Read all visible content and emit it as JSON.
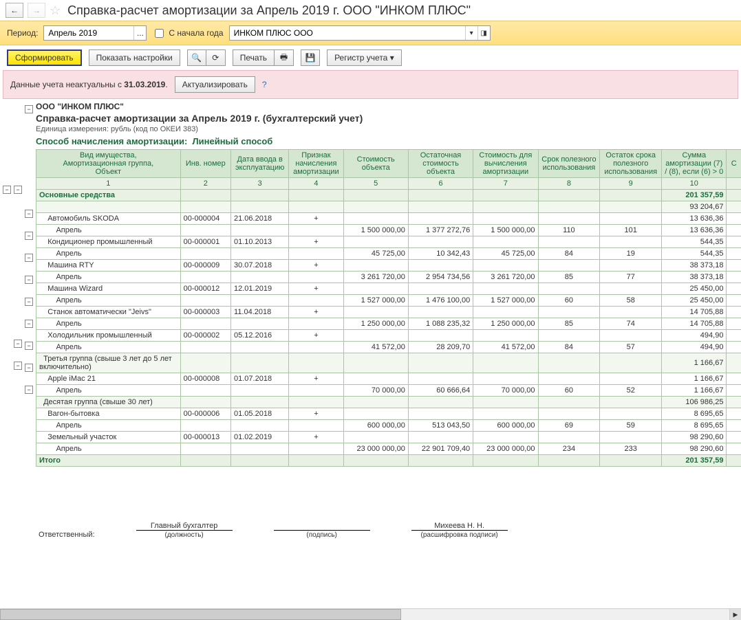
{
  "title": "Справка-расчет амортизации за Апрель 2019 г. ООО \"ИНКОМ ПЛЮС\"",
  "period_label": "Период:",
  "period_value": "Апрель 2019",
  "from_year_start_label": "С начала года",
  "org_value": "ИНКОМ ПЛЮС ООО",
  "toolbar": {
    "form": "Сформировать",
    "show_settings": "Показать настройки",
    "print": "Печать",
    "register": "Регистр учета"
  },
  "warning": {
    "text_pre": "Данные учета неактуальны с ",
    "date": "31.03.2019",
    "dot": ".",
    "update_btn": "Актуализировать",
    "q": "?"
  },
  "report": {
    "org_header": "ООО \"ИНКОМ ПЛЮС\"",
    "title": "Справка-расчет амортизации за Апрель 2019 г. (бухгалтерский учет)",
    "unit": "Единица измерения:   рубль (код по ОКЕИ 383)",
    "method_label": "Способ начисления амортизации:",
    "method_value": "Линейный способ",
    "columns": [
      "Вид имущества,\nАмортизационная группа,\nОбъект",
      "Инв. номер",
      "Дата ввода в эксплуатацию",
      "Признак начисления амортизации",
      "Стоимость объекта",
      "Остаточная стоимость объекта",
      "Стоимость для вычисления амортизации",
      "Срок полезного использования",
      "Остаток срока полезного использования",
      "Сумма амортизации (7) / (8), если (6) > 0",
      "С"
    ],
    "col_nums": [
      "1",
      "2",
      "3",
      "4",
      "5",
      "6",
      "7",
      "8",
      "9",
      "10"
    ],
    "group_main": {
      "name": "Основные средства",
      "sum10": "201 357,59"
    },
    "blank_sum": "93 204,67",
    "items1": [
      {
        "name": "Автомобиль SKODA",
        "inv": "00-000004",
        "date": "21.06.2018",
        "sign": "+",
        "sum10": "13 636,36",
        "month": "Апрель",
        "c5": "1 500 000,00",
        "c6": "1 377 272,76",
        "c7": "1 500 000,00",
        "c8": "110",
        "c9": "101",
        "m10": "13 636,36"
      },
      {
        "name": "Кондиционер промышленный",
        "inv": "00-000001",
        "date": "01.10.2013",
        "sign": "+",
        "sum10": "544,35",
        "month": "Апрель",
        "c5": "45 725,00",
        "c6": "10 342,43",
        "c7": "45 725,00",
        "c8": "84",
        "c9": "19",
        "m10": "544,35"
      },
      {
        "name": "Машина RTY",
        "inv": "00-000009",
        "date": "30.07.2018",
        "sign": "+",
        "sum10": "38 373,18",
        "month": "Апрель",
        "c5": "3 261 720,00",
        "c6": "2 954 734,56",
        "c7": "3 261 720,00",
        "c8": "85",
        "c9": "77",
        "m10": "38 373,18"
      },
      {
        "name": "Машина Wizard",
        "inv": "00-000012",
        "date": "12.01.2019",
        "sign": "+",
        "sum10": "25 450,00",
        "month": "Апрель",
        "c5": "1 527 000,00",
        "c6": "1 476 100,00",
        "c7": "1 527 000,00",
        "c8": "60",
        "c9": "58",
        "m10": "25 450,00"
      },
      {
        "name": "Станок автоматически \"Jeivs\"",
        "inv": "00-000003",
        "date": "11.04.2018",
        "sign": "+",
        "sum10": "14 705,88",
        "month": "Апрель",
        "c5": "1 250 000,00",
        "c6": "1 088 235,32",
        "c7": "1 250 000,00",
        "c8": "85",
        "c9": "74",
        "m10": "14 705,88"
      },
      {
        "name": "Холодильник промышленный",
        "inv": "00-000002",
        "date": "05.12.2016",
        "sign": "+",
        "sum10": "494,90",
        "month": "Апрель",
        "c5": "41 572,00",
        "c6": "28 209,70",
        "c7": "41 572,00",
        "c8": "84",
        "c9": "57",
        "m10": "494,90"
      }
    ],
    "group3": {
      "name": "Третья группа (свыше 3 лет до 5 лет включительно)",
      "sum10": "1 166,67"
    },
    "items3": [
      {
        "name": "Apple iMac 21",
        "inv": "00-000008",
        "date": "01.07.2018",
        "sign": "+",
        "sum10": "1 166,67",
        "month": "Апрель",
        "c5": "70 000,00",
        "c6": "60 666,64",
        "c7": "70 000,00",
        "c8": "60",
        "c9": "52",
        "m10": "1 166,67"
      }
    ],
    "group10": {
      "name": "Десятая группа (свыше 30 лет)",
      "sum10": "106 986,25"
    },
    "items10": [
      {
        "name": "Вагон-бытовка",
        "inv": "00-000006",
        "date": "01.05.2018",
        "sign": "+",
        "sum10": "8 695,65",
        "month": "Апрель",
        "c5": "600 000,00",
        "c6": "513 043,50",
        "c7": "600 000,00",
        "c8": "69",
        "c9": "59",
        "m10": "8 695,65"
      },
      {
        "name": "Земельный участок",
        "inv": "00-000013",
        "date": "01.02.2019",
        "sign": "+",
        "sum10": "98 290,60",
        "month": "Апрель",
        "c5": "23 000 000,00",
        "c6": "22 901 709,40",
        "c7": "23 000 000,00",
        "c8": "234",
        "c9": "233",
        "m10": "98 290,60"
      }
    ],
    "total": {
      "label": "Итого",
      "sum10": "201 357,59"
    },
    "resp_label": "Ответственный:",
    "post": "Главный бухгалтер",
    "post_hint": "(должность)",
    "sign_hint": "(подпись)",
    "fio": "Михеева Н. Н.",
    "fio_hint": "(расшифровка подписи)"
  },
  "colors": {
    "header_bg": "#d5e6d1",
    "group_bg": "#e8f1e4",
    "border": "#aac5a3",
    "green_text": "#1b6d3c",
    "yellow_bar": "#ffdf7e",
    "warn_bg": "#f9e0e4"
  }
}
